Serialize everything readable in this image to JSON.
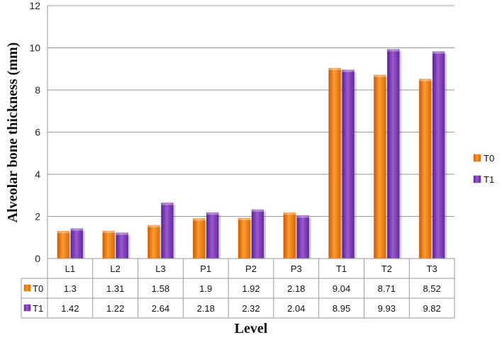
{
  "chart_data": {
    "type": "bar",
    "xlabel": "Level",
    "ylabel": "Alveolar bone thickness (mm)",
    "categories": [
      "L1",
      "L2",
      "L3",
      "P1",
      "P2",
      "P3",
      "T1",
      "T2",
      "T3"
    ],
    "series": [
      {
        "name": "T0",
        "color": "#f07f12",
        "values": [
          1.3,
          1.31,
          1.58,
          1.9,
          1.92,
          2.18,
          9.04,
          8.71,
          8.52
        ]
      },
      {
        "name": "T1",
        "color": "#7a3ab0",
        "values": [
          1.42,
          1.22,
          2.64,
          2.18,
          2.32,
          2.04,
          8.95,
          9.93,
          9.82
        ]
      }
    ],
    "ylim": [
      0,
      12
    ],
    "yticks": [
      0,
      2,
      4,
      6,
      8,
      10,
      12
    ],
    "grid": true,
    "legend": "right",
    "data_table": true
  }
}
